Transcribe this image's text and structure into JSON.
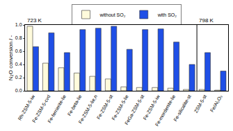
{
  "chart_data": {
    "type": "bar",
    "y_label": "N₂O conversion / -",
    "categories": [
      "Rh-ZSM-5-iw",
      "Fe-ZSM-5-cvd",
      "Fe-ferrierite-lie",
      "Fe-beta-lie",
      "Fe-ZSM-5-lie,n",
      "Fe-ZSM-5-st",
      "Fe-ZSM-5-lie",
      "FeGa-ZSM-5-st",
      "Fe-ZSM-5-iw",
      "Fe-mordenite-lie",
      "Fe-silicalite-st",
      "ZSM-5-st",
      "Fe/Al₂O₃"
    ],
    "series": [
      {
        "name": "without SO₂",
        "color": "#fffbdc",
        "values": [
          0.98,
          0.42,
          0.35,
          0.27,
          0.22,
          0.18,
          0.06,
          0.05,
          0.05,
          0.04,
          0.02,
          0.02,
          0.01
        ]
      },
      {
        "name": "with SO₂",
        "color": "#1f4fe6",
        "values": [
          0.67,
          0.88,
          0.58,
          0.93,
          0.95,
          0.98,
          0.63,
          0.93,
          0.94,
          0.74,
          0.4,
          0.58,
          0.3
        ]
      }
    ],
    "annotations": [
      {
        "text": "723 K",
        "category": "Rh-ZSM-5-iw"
      },
      {
        "text": "798 K",
        "category": "ZSM-5-st"
      }
    ],
    "ylim": [
      0,
      1
    ],
    "yticks": [
      {
        "value": 0,
        "label": "0.0"
      },
      {
        "value": 0.2,
        "label": "0.2"
      },
      {
        "value": 0.4,
        "label": "0.4"
      },
      {
        "value": 0.6,
        "label": "0.6"
      },
      {
        "value": 0.8,
        "label": "0.8"
      },
      {
        "value": 1,
        "label": "1.0"
      }
    ],
    "grid": false,
    "legend": "top"
  }
}
